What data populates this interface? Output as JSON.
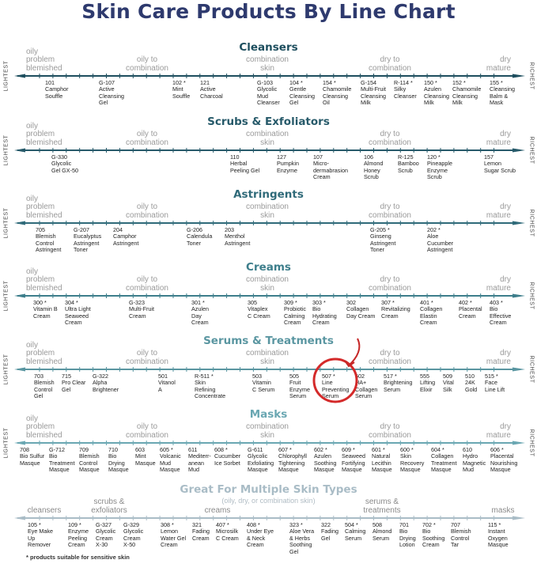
{
  "title": "Skin Care Products By Line Chart",
  "axis_labels": {
    "left": "LIGHTEST",
    "right": "RICHEST"
  },
  "skin_types": [
    "oily\nproblem\nblemished",
    "oily to\ncombination",
    "combination\nskin",
    "dry to\ncombination",
    "dry\nmature"
  ],
  "colors": {
    "title": "#2e3a6e",
    "highlight": "#d42a2a"
  },
  "sections": [
    {
      "title": "Cleansers",
      "color": "#1d4e5e",
      "products": [
        {
          "code": "101",
          "name": "Camphor\nSouffle"
        },
        {
          "code": "G-107",
          "name": "Active\nCleansing\nGel"
        },
        {
          "code": "102 *",
          "name": "Mint\nSouffle"
        },
        {
          "code": "121",
          "name": "Active\nCharcoal"
        },
        {
          "code": "G-103",
          "name": "Glycolic\nMud\nCleanser"
        },
        {
          "code": "104 *",
          "name": "Gentle\nCleansing\nGel"
        },
        {
          "code": "154 *",
          "name": "Chamomile\nCleansing\nOil"
        },
        {
          "code": "G-154",
          "name": "Multi-Fruit\nCleansing\nMilk"
        },
        {
          "code": "R-114 *",
          "name": "Silky\nCleanser"
        },
        {
          "code": "150 *",
          "name": "Azulen\nCleansing\nMilk"
        },
        {
          "code": "152 *",
          "name": "Chamomile\nCleansing\nMilk"
        },
        {
          "code": "155 *",
          "name": "Cleansing\nBalm &\nMask"
        }
      ]
    },
    {
      "title": "Scrubs & Exfoliators",
      "color": "#275a6a",
      "products": [
        {
          "code": "G-330",
          "name": "Glycolic\nGel GX-50"
        },
        {
          "code": "110",
          "name": "Herbal\nPeeling Gel"
        },
        {
          "code": "127",
          "name": "Pumpkin\nEnzyme"
        },
        {
          "code": "107",
          "name": "Micro-\ndermabrasion\nCream"
        },
        {
          "code": "106",
          "name": "Almond\nHoney\nScrub"
        },
        {
          "code": "R-125",
          "name": "Bamboo\nScrub"
        },
        {
          "code": "120 *",
          "name": "Pineapple\nEnzyme\nScrub"
        },
        {
          "code": "157",
          "name": "Lemon\nSugar Scrub"
        }
      ]
    },
    {
      "title": "Astringents",
      "color": "#2f6a79",
      "products": [
        {
          "code": "705",
          "name": "Blemish\nControl\nAstringent"
        },
        {
          "code": "G-207",
          "name": "Eucalyptus\nAstringent\nToner"
        },
        {
          "code": "204",
          "name": "Camphor\nAstringent"
        },
        {
          "code": "G-206",
          "name": "Calendula\nToner"
        },
        {
          "code": "203",
          "name": "Menthol\nAstringent"
        },
        {
          "code": "G-205 *",
          "name": "Ginseng\nAstringent\nToner"
        },
        {
          "code": "202 *",
          "name": "Aloe\nCucumber\nAstringent"
        }
      ]
    },
    {
      "title": "Creams",
      "color": "#3d7e8b",
      "products": [
        {
          "code": "300 *",
          "name": "Vitamin B\nCream"
        },
        {
          "code": "304 *",
          "name": "Ultra Light\nSeaweed\nCream"
        },
        {
          "code": "G-323",
          "name": "Multi-Fruit\nCream"
        },
        {
          "code": "301 *",
          "name": "Azulen\nDay\nCream"
        },
        {
          "code": "305",
          "name": "Vitaplex\nC Cream"
        },
        {
          "code": "309 *",
          "name": "Probiotic\nCalming\nCream"
        },
        {
          "code": "303 *",
          "name": "Bio\nHydrating\nCream"
        },
        {
          "code": "302",
          "name": "Collagen\nDay Cream"
        },
        {
          "code": "307 *",
          "name": "Revitalizing\nCream"
        },
        {
          "code": "401 *",
          "name": "Collagen\nElastin\nCream"
        },
        {
          "code": "402 *",
          "name": "Placental\nCream"
        },
        {
          "code": "403 *",
          "name": "Bio\nEffective\nCream"
        }
      ]
    },
    {
      "title": "Serums & Treatments",
      "color": "#5a96a1",
      "products": [
        {
          "code": "703",
          "name": "Blemish\nControl\nGel"
        },
        {
          "code": "715",
          "name": "Pro Clear\nGel"
        },
        {
          "code": "G-322",
          "name": "Alpha\nBrightener"
        },
        {
          "code": "501",
          "name": "Vitanol\nA"
        },
        {
          "code": "R-511 *",
          "name": "Skin\nRefining\nConcentrate"
        },
        {
          "code": "503",
          "name": "Vitamin\nC Serum"
        },
        {
          "code": "505",
          "name": "Fruit\nEnzyme\nSerum"
        },
        {
          "code": "507 *",
          "name": "Line\nPreventing\nSerum"
        },
        {
          "code": "502",
          "name": "HA+\nCollagen\nSerum"
        },
        {
          "code": "517 *",
          "name": "Brightening\nSerum"
        },
        {
          "code": "555",
          "name": "Lifting\nElixir"
        },
        {
          "code": "509",
          "name": "Vital\nSilk"
        },
        {
          "code": "510",
          "name": "24K\nGold"
        },
        {
          "code": "515 *",
          "name": "Face\nLine Lift"
        }
      ]
    },
    {
      "title": "Masks",
      "color": "#6aa7b2",
      "products": [
        {
          "code": "708",
          "name": "Bio Sulfur\nMasque"
        },
        {
          "code": "G-712",
          "name": "Bio\nTreatment\nMasque"
        },
        {
          "code": "709",
          "name": "Blemish\nControl\nMasque"
        },
        {
          "code": "710",
          "name": "Bio\nDrying\nMasque"
        },
        {
          "code": "603",
          "name": "Mint\nMasque"
        },
        {
          "code": "605 *",
          "name": "Volcanic\nMud\nMasque"
        },
        {
          "code": "611",
          "name": "Mediterr-\nanean\nMud"
        },
        {
          "code": "608 *",
          "name": "Cucumber\nIce Sorbet"
        },
        {
          "code": "G-611",
          "name": "Glycolic\nExfoliating\nMasque"
        },
        {
          "code": "607 *",
          "name": "Chlorophyll\nTightening\nMasque"
        },
        {
          "code": "602 *",
          "name": "Azulen\nSoothing\nMasque"
        },
        {
          "code": "609 *",
          "name": "Seaweed\nFortifying\nMasque"
        },
        {
          "code": "601 *",
          "name": "Natural\nLecithin\nMasque"
        },
        {
          "code": "600 *",
          "name": "Skin\nRecovery\nMasque"
        },
        {
          "code": "604 *",
          "name": "Collagen\nTreatment\nMasque"
        },
        {
          "code": "610",
          "name": "Hydro\nMagnetic\nMud"
        },
        {
          "code": "606 *",
          "name": "Placental\nNourishing\nMasque"
        }
      ]
    },
    {
      "title": "Great For Multiple Skin Types",
      "subtitle": "(oily, dry, or combination skin)",
      "color": "#a9bcc6",
      "categories": [
        "cleansers",
        "scrubs &\nexfoliators",
        "creams",
        "serums &\ntreatments",
        "masks"
      ],
      "products": [
        {
          "code": "105 *",
          "name": "Eye Make\nUp\nRemover"
        },
        {
          "code": "109 *",
          "name": "Enzyme\nPeeling\nCream"
        },
        {
          "code": "G-327",
          "name": "Glycolic\nCream\nX-30"
        },
        {
          "code": "G-329",
          "name": "Glycolic\nCream\nX-50"
        },
        {
          "code": "308 *",
          "name": "Lemon\nWater Gel\nCream"
        },
        {
          "code": "321",
          "name": "Fading\nCream"
        },
        {
          "code": "407 *",
          "name": "Microsilk\nC Cream"
        },
        {
          "code": "408 *",
          "name": "Under Eye\n& Neck\nCream"
        },
        {
          "code": "323 *",
          "name": "Aloe Vera\n& Herbs\nSoothing\nGel"
        },
        {
          "code": "322",
          "name": "Fading\nGel"
        },
        {
          "code": "504 *",
          "name": "Calming\nSerum"
        },
        {
          "code": "508",
          "name": "Almond\nSerum"
        },
        {
          "code": "701",
          "name": "Bio\nDrying\nLotion"
        },
        {
          "code": "702 *",
          "name": "Bio\nSoothing\nCream"
        },
        {
          "code": "707",
          "name": "Blemish\nControl\nTar"
        },
        {
          "code": "115 *",
          "name": "Instant\nOxygen\nMasque"
        }
      ]
    }
  ],
  "highlighted_product": "507 *",
  "footnote": "* products suitable for sensitive skin"
}
